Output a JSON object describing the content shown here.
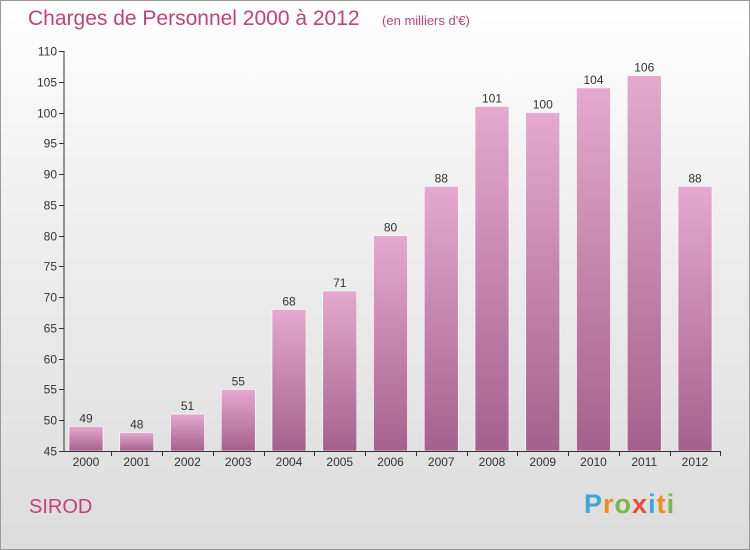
{
  "title": "Charges de Personnel 2000 à 2012",
  "unit": "(en milliers d'€)",
  "commune": "SIROD",
  "logo": {
    "letters": [
      "P",
      "r",
      "o",
      "x",
      "i",
      "t",
      "i"
    ],
    "colors": [
      "#3aa7d8",
      "#f28c1c",
      "#7ab648",
      "#e84d3d",
      "#3aa7d8",
      "#f28c1c",
      "#7ab648"
    ]
  },
  "colors": {
    "accent": "#c0427a",
    "bar_top": "#e4a9cd",
    "bar_bottom": "#a5618d"
  },
  "chart_data": {
    "type": "bar",
    "title": "Charges de Personnel 2000 à 2012",
    "subtitle": "(en milliers d'€)",
    "xlabel": "",
    "ylabel": "",
    "categories": [
      "2000",
      "2001",
      "2002",
      "2003",
      "2004",
      "2005",
      "2006",
      "2007",
      "2008",
      "2009",
      "2010",
      "2011",
      "2012"
    ],
    "values": [
      49,
      48,
      51,
      55,
      68,
      71,
      80,
      88,
      101,
      100,
      104,
      106,
      88
    ],
    "ylim": [
      45,
      110
    ],
    "yticks": [
      45,
      50,
      55,
      60,
      65,
      70,
      75,
      80,
      85,
      90,
      95,
      100,
      105,
      110
    ],
    "grid": false
  }
}
